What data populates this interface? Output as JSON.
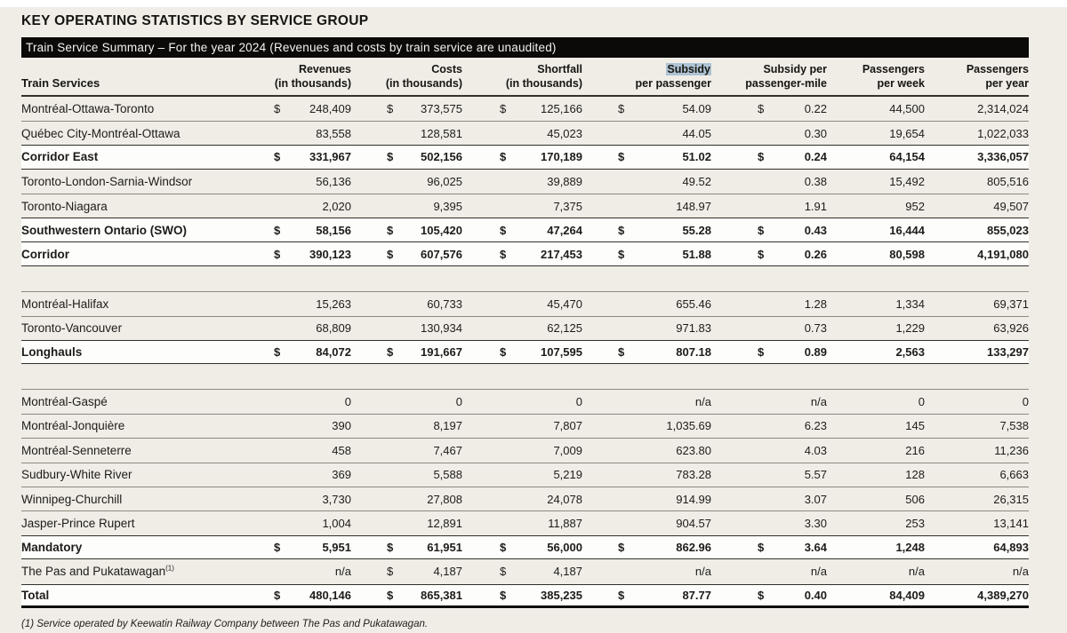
{
  "page": {
    "title": "KEY OPERATING STATISTICS BY SERVICE GROUP",
    "banner": "Train Service Summary – For the year 2024 (Revenues and costs by train service are unaudited)",
    "footnote": "(1) Service operated by Keewatin Railway Company between The Pas and Pukatawagan."
  },
  "colors": {
    "background": "#f0ede7",
    "banner_bg": "#0b0a09",
    "summary_row_bg": "#fdfdfc",
    "selection_highlight": "#aec3d3",
    "thin_rule": "#8e897f",
    "dark_rule": "#33302a"
  },
  "table": {
    "first_column_header": "Train Services",
    "columns": [
      {
        "key": "revenues",
        "line1": "Revenues",
        "line2": "(in thousands)",
        "highlighted": false
      },
      {
        "key": "costs",
        "line1": "Costs",
        "line2": "(in thousands)",
        "highlighted": false
      },
      {
        "key": "shortfall",
        "line1": "Shortfall",
        "line2": "(in thousands)",
        "highlighted": false
      },
      {
        "key": "subsidy-per-passenger",
        "line1": "Subsidy",
        "line2": "per passenger",
        "highlighted": true
      },
      {
        "key": "subsidy-per-passenger-mile",
        "line1": "Subsidy per",
        "line2": "passenger-mile",
        "highlighted": false
      },
      {
        "key": "passengers-per-week",
        "line1": "Passengers",
        "line2": "per week",
        "highlighted": false
      },
      {
        "key": "passengers-per-year",
        "line1": "Passengers",
        "line2": "per year",
        "highlighted": false
      }
    ],
    "rows": [
      {
        "type": "route",
        "name": "Montréal-Ottawa-Toronto",
        "sup": "",
        "values": [
          {
            "d": "$",
            "v": "248,409"
          },
          {
            "d": "$",
            "v": "373,575"
          },
          {
            "d": "$",
            "v": "125,166"
          },
          {
            "d": "$",
            "v": "54.09"
          },
          {
            "d": "$",
            "v": "0.22"
          },
          {
            "d": "",
            "v": "44,500"
          },
          {
            "d": "",
            "v": "2,314,024"
          }
        ]
      },
      {
        "type": "route",
        "name": "Québec City-Montréal-Ottawa",
        "sup": "",
        "values": [
          {
            "d": "",
            "v": "83,558"
          },
          {
            "d": "",
            "v": "128,581"
          },
          {
            "d": "",
            "v": "45,023"
          },
          {
            "d": "",
            "v": "44.05"
          },
          {
            "d": "",
            "v": "0.30"
          },
          {
            "d": "",
            "v": "19,654"
          },
          {
            "d": "",
            "v": "1,022,033"
          }
        ]
      },
      {
        "type": "summary",
        "name": "Corridor East",
        "sup": "",
        "values": [
          {
            "d": "$",
            "v": "331,967"
          },
          {
            "d": "$",
            "v": "502,156"
          },
          {
            "d": "$",
            "v": "170,189"
          },
          {
            "d": "$",
            "v": "51.02"
          },
          {
            "d": "$",
            "v": "0.24"
          },
          {
            "d": "",
            "v": "64,154"
          },
          {
            "d": "",
            "v": "3,336,057"
          }
        ]
      },
      {
        "type": "route",
        "name": "Toronto-London-Sarnia-Windsor",
        "sup": "",
        "values": [
          {
            "d": "",
            "v": "56,136"
          },
          {
            "d": "",
            "v": "96,025"
          },
          {
            "d": "",
            "v": "39,889"
          },
          {
            "d": "",
            "v": "49.52"
          },
          {
            "d": "",
            "v": "0.38"
          },
          {
            "d": "",
            "v": "15,492"
          },
          {
            "d": "",
            "v": "805,516"
          }
        ]
      },
      {
        "type": "route",
        "name": "Toronto-Niagara",
        "sup": "",
        "values": [
          {
            "d": "",
            "v": "2,020"
          },
          {
            "d": "",
            "v": "9,395"
          },
          {
            "d": "",
            "v": "7,375"
          },
          {
            "d": "",
            "v": "148.97"
          },
          {
            "d": "",
            "v": "1.91"
          },
          {
            "d": "",
            "v": "952"
          },
          {
            "d": "",
            "v": "49,507"
          }
        ]
      },
      {
        "type": "summary",
        "name": "Southwestern Ontario (SWO)",
        "sup": "",
        "values": [
          {
            "d": "$",
            "v": "58,156"
          },
          {
            "d": "$",
            "v": "105,420"
          },
          {
            "d": "$",
            "v": "47,264"
          },
          {
            "d": "$",
            "v": "55.28"
          },
          {
            "d": "$",
            "v": "0.43"
          },
          {
            "d": "",
            "v": "16,444"
          },
          {
            "d": "",
            "v": "855,023"
          }
        ]
      },
      {
        "type": "summary",
        "name": "Corridor",
        "sup": "",
        "values": [
          {
            "d": "$",
            "v": "390,123"
          },
          {
            "d": "$",
            "v": "607,576"
          },
          {
            "d": "$",
            "v": "217,453"
          },
          {
            "d": "$",
            "v": "51.88"
          },
          {
            "d": "$",
            "v": "0.26"
          },
          {
            "d": "",
            "v": "80,598"
          },
          {
            "d": "",
            "v": "4,191,080"
          }
        ]
      },
      {
        "type": "gap"
      },
      {
        "type": "route",
        "name": "Montréal-Halifax",
        "sup": "",
        "values": [
          {
            "d": "",
            "v": "15,263"
          },
          {
            "d": "",
            "v": "60,733"
          },
          {
            "d": "",
            "v": "45,470"
          },
          {
            "d": "",
            "v": "655.46"
          },
          {
            "d": "",
            "v": "1.28"
          },
          {
            "d": "",
            "v": "1,334"
          },
          {
            "d": "",
            "v": "69,371"
          }
        ]
      },
      {
        "type": "route",
        "name": "Toronto-Vancouver",
        "sup": "",
        "values": [
          {
            "d": "",
            "v": "68,809"
          },
          {
            "d": "",
            "v": "130,934"
          },
          {
            "d": "",
            "v": "62,125"
          },
          {
            "d": "",
            "v": "971.83"
          },
          {
            "d": "",
            "v": "0.73"
          },
          {
            "d": "",
            "v": "1,229"
          },
          {
            "d": "",
            "v": "63,926"
          }
        ]
      },
      {
        "type": "summary",
        "name": "Longhauls",
        "sup": "",
        "values": [
          {
            "d": "$",
            "v": "84,072"
          },
          {
            "d": "$",
            "v": "191,667"
          },
          {
            "d": "$",
            "v": "107,595"
          },
          {
            "d": "$",
            "v": "807.18"
          },
          {
            "d": "$",
            "v": "0.89"
          },
          {
            "d": "",
            "v": "2,563"
          },
          {
            "d": "",
            "v": "133,297"
          }
        ]
      },
      {
        "type": "gap"
      },
      {
        "type": "route",
        "name": "Montréal-Gaspé",
        "sup": "",
        "values": [
          {
            "d": "",
            "v": "0"
          },
          {
            "d": "",
            "v": "0"
          },
          {
            "d": "",
            "v": "0"
          },
          {
            "d": "",
            "v": "n/a"
          },
          {
            "d": "",
            "v": "n/a"
          },
          {
            "d": "",
            "v": "0"
          },
          {
            "d": "",
            "v": "0"
          }
        ]
      },
      {
        "type": "route",
        "name": "Montréal-Jonquière",
        "sup": "",
        "values": [
          {
            "d": "",
            "v": "390"
          },
          {
            "d": "",
            "v": "8,197"
          },
          {
            "d": "",
            "v": "7,807"
          },
          {
            "d": "",
            "v": "1,035.69"
          },
          {
            "d": "",
            "v": "6.23"
          },
          {
            "d": "",
            "v": "145"
          },
          {
            "d": "",
            "v": "7,538"
          }
        ]
      },
      {
        "type": "route",
        "name": "Montréal-Senneterre",
        "sup": "",
        "values": [
          {
            "d": "",
            "v": "458"
          },
          {
            "d": "",
            "v": "7,467"
          },
          {
            "d": "",
            "v": "7,009"
          },
          {
            "d": "",
            "v": "623.80"
          },
          {
            "d": "",
            "v": "4.03"
          },
          {
            "d": "",
            "v": "216"
          },
          {
            "d": "",
            "v": "11,236"
          }
        ]
      },
      {
        "type": "route",
        "name": "Sudbury-White River",
        "sup": "",
        "values": [
          {
            "d": "",
            "v": "369"
          },
          {
            "d": "",
            "v": "5,588"
          },
          {
            "d": "",
            "v": "5,219"
          },
          {
            "d": "",
            "v": "783.28"
          },
          {
            "d": "",
            "v": "5.57"
          },
          {
            "d": "",
            "v": "128"
          },
          {
            "d": "",
            "v": "6,663"
          }
        ]
      },
      {
        "type": "route",
        "name": "Winnipeg-Churchill",
        "sup": "",
        "values": [
          {
            "d": "",
            "v": "3,730"
          },
          {
            "d": "",
            "v": "27,808"
          },
          {
            "d": "",
            "v": "24,078"
          },
          {
            "d": "",
            "v": "914.99"
          },
          {
            "d": "",
            "v": "3.07"
          },
          {
            "d": "",
            "v": "506"
          },
          {
            "d": "",
            "v": "26,315"
          }
        ]
      },
      {
        "type": "route",
        "name": "Jasper-Prince Rupert",
        "sup": "",
        "values": [
          {
            "d": "",
            "v": "1,004"
          },
          {
            "d": "",
            "v": "12,891"
          },
          {
            "d": "",
            "v": "11,887"
          },
          {
            "d": "",
            "v": "904.57"
          },
          {
            "d": "",
            "v": "3.30"
          },
          {
            "d": "",
            "v": "253"
          },
          {
            "d": "",
            "v": "13,141"
          }
        ]
      },
      {
        "type": "summary",
        "name": "Mandatory",
        "sup": "",
        "values": [
          {
            "d": "$",
            "v": "5,951"
          },
          {
            "d": "$",
            "v": "61,951"
          },
          {
            "d": "$",
            "v": "56,000"
          },
          {
            "d": "$",
            "v": "862.96"
          },
          {
            "d": "$",
            "v": "3.64"
          },
          {
            "d": "",
            "v": "1,248"
          },
          {
            "d": "",
            "v": "64,893"
          }
        ]
      },
      {
        "type": "route",
        "name": "The Pas and Pukatawagan",
        "sup": "(1)",
        "values": [
          {
            "d": "",
            "v": "n/a"
          },
          {
            "d": "$",
            "v": "4,187"
          },
          {
            "d": "$",
            "v": "4,187"
          },
          {
            "d": "",
            "v": "n/a"
          },
          {
            "d": "",
            "v": "n/a"
          },
          {
            "d": "",
            "v": "n/a"
          },
          {
            "d": "",
            "v": "n/a"
          }
        ]
      },
      {
        "type": "total",
        "name": "Total",
        "sup": "",
        "values": [
          {
            "d": "$",
            "v": "480,146"
          },
          {
            "d": "$",
            "v": "865,381"
          },
          {
            "d": "$",
            "v": "385,235"
          },
          {
            "d": "$",
            "v": "87.77"
          },
          {
            "d": "$",
            "v": "0.40"
          },
          {
            "d": "",
            "v": "84,409"
          },
          {
            "d": "",
            "v": "4,389,270"
          }
        ]
      }
    ]
  }
}
